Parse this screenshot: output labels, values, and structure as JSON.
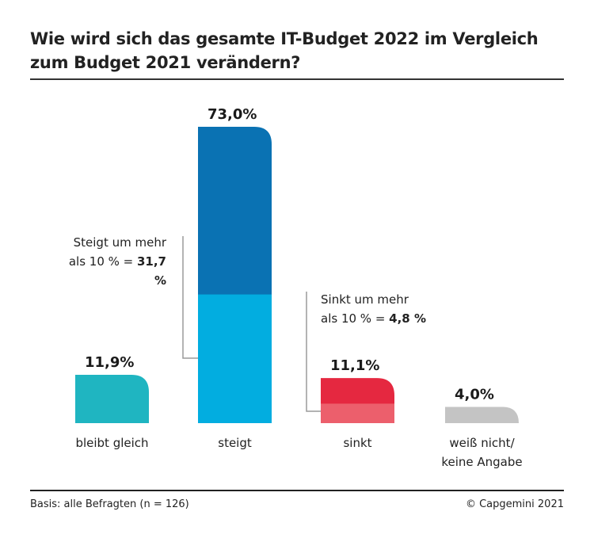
{
  "chart_data": {
    "type": "bar",
    "title": "Wie wird sich das gesamte IT-Budget 2022 im Vergleich zum Budget 2021 verändern?",
    "xlabel": "",
    "ylabel": "",
    "ylim": [
      0,
      73
    ],
    "grid": false,
    "categories": [
      "bleibt gleich",
      "steigt",
      "sinkt",
      "weiß nicht/\nkeine Angabe"
    ],
    "category_lines": [
      [
        "bleibt gleich"
      ],
      [
        "steigt"
      ],
      [
        "sinkt"
      ],
      [
        "weiß nicht/",
        "keine Angabe"
      ]
    ],
    "values": [
      11.9,
      73.0,
      11.1,
      4.0
    ],
    "value_labels": [
      "11,9%",
      "73,0%",
      "11,1%",
      "4,0%"
    ],
    "segments": [
      {
        "category": "steigt",
        "name": "Steigt um mehr als 10 %",
        "value": 31.7,
        "position": "bottom"
      },
      {
        "category": "sinkt",
        "name": "Sinkt um mehr als 10 %",
        "value": 4.8,
        "position": "bottom"
      }
    ],
    "colors": {
      "bleibt gleich": "#1fb5c1",
      "steigt_total": "#0a72b3",
      "steigt_segment": "#02ade0",
      "sinkt_total": "#e52840",
      "sinkt_segment": "#ec5f6c",
      "weiss_nicht": "#c4c4c4",
      "leader_line": "#9a9a9a"
    },
    "annotations": [
      {
        "target": "steigt",
        "line1": "Steigt um mehr",
        "line2_prefix": "als 10 % = ",
        "line2_value": "31,7 %"
      },
      {
        "target": "sinkt",
        "line1": "Sinkt um mehr",
        "line2_prefix": "als 10 % = ",
        "line2_value": "4,8 %"
      }
    ]
  },
  "footer": {
    "basis": "Basis: alle Befragten (n = 126)",
    "copyright": "© Capgemini 2021"
  }
}
